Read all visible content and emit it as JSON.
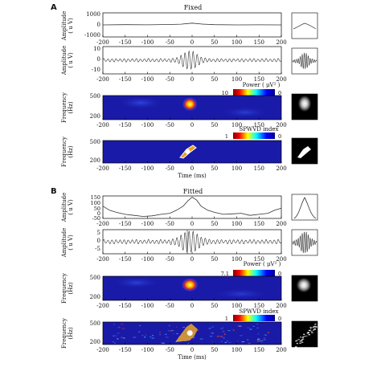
{
  "colors": {
    "trace": "#333333",
    "axis": "#000000",
    "map_background": "#1a1aa8",
    "thumb_background": "#000000"
  },
  "panels": [
    {
      "label": "A",
      "title": "Fixed",
      "traces": [
        {
          "type": "line",
          "ylabel_main": "Amplitude",
          "ylabel_unit": "( u V)",
          "yticks": [
            "1000",
            "0",
            "-1000"
          ],
          "ylim": [
            -1000,
            1000
          ],
          "x": [
            -200,
            -150,
            -100,
            -50,
            -25,
            0,
            25,
            50,
            100,
            150,
            200
          ],
          "y": [
            0,
            20,
            10,
            30,
            60,
            150,
            60,
            20,
            0,
            10,
            0
          ],
          "inset": "raw-trace-thumbnail"
        },
        {
          "type": "line",
          "ylabel_main": "Amplitude",
          "ylabel_unit": "( u V)",
          "yticks": [
            "10",
            "0",
            "-10"
          ],
          "ylim": [
            -15,
            15
          ],
          "envelope": {
            "center": -5,
            "width": 22,
            "base_amp": 1.8,
            "peak_amp": 10.5,
            "cycles_per_ms": 0.11
          },
          "inset": "filtered-trace-thumbnail"
        }
      ],
      "maps": [
        {
          "name": "power",
          "ylabel_main": "Frequency",
          "ylabel_unit": "(Hz)",
          "yticks": [
            "500",
            "200"
          ],
          "colorbar_label": "Power ( μV² )",
          "colorbar_max": "10",
          "colorbar_min": "0",
          "hotspot_ms": -5,
          "hotspot_hz": 440,
          "inset": "power-map-thumbnail"
        },
        {
          "name": "spwvd",
          "ylabel_main": "Frequency",
          "ylabel_unit": "(Hz)",
          "yticks": [
            "500",
            "200"
          ],
          "colorbar_label": "SPWVD index",
          "colorbar_max": "1",
          "colorbar_min": "0",
          "hotspot_ms": -10,
          "hotspot_hz": 380,
          "inset": "spwvd-map-thumbnail"
        }
      ]
    },
    {
      "label": "B",
      "title": "Fitted",
      "traces": [
        {
          "type": "line",
          "ylabel_main": "Amplitude",
          "ylabel_unit": "( u V)",
          "yticks": [
            "150",
            "100",
            "50",
            "0",
            "-50"
          ],
          "ylim": [
            -60,
            160
          ],
          "x": [
            -200,
            -185,
            -170,
            -150,
            -130,
            -110,
            -90,
            -70,
            -50,
            -35,
            -20,
            -10,
            0,
            10,
            20,
            35,
            50,
            70,
            90,
            110,
            130,
            150,
            170,
            185,
            200
          ],
          "y": [
            60,
            20,
            0,
            -20,
            -30,
            -40,
            -35,
            -20,
            -10,
            20,
            60,
            110,
            148,
            120,
            60,
            20,
            0,
            -20,
            -15,
            -10,
            -30,
            -20,
            -10,
            20,
            40
          ],
          "inset": "raw-trace-thumbnail"
        },
        {
          "type": "line",
          "ylabel_main": "Amplitude",
          "ylabel_unit": "( u V)",
          "yticks": [
            "5",
            "0",
            "-5"
          ],
          "ylim": [
            -8,
            8
          ],
          "envelope": {
            "center": -5,
            "width": 25,
            "base_amp": 1.4,
            "peak_amp": 7.5,
            "cycles_per_ms": 0.11
          },
          "inset": "filtered-trace-thumbnail"
        }
      ],
      "maps": [
        {
          "name": "power",
          "ylabel_main": "Frequency",
          "ylabel_unit": "(Hz)",
          "yticks": [
            "500",
            "200"
          ],
          "colorbar_label": "Power ( μV² )",
          "colorbar_max": "7.1",
          "colorbar_min": "0",
          "hotspot_ms": -5,
          "hotspot_hz": 440,
          "inset": "power-map-thumbnail"
        },
        {
          "name": "spwvd",
          "ylabel_main": "Frequency",
          "ylabel_unit": "(Hz)",
          "yticks": [
            "500",
            "200"
          ],
          "colorbar_label": "SPWVD index",
          "colorbar_max": "1",
          "colorbar_min": "0",
          "hotspot_ms": -5,
          "hotspot_hz": 380,
          "inset": "spwvd-map-thumbnail"
        }
      ]
    }
  ],
  "xaxis": {
    "ticks": [
      -200,
      -150,
      -100,
      -50,
      0,
      50,
      100,
      150,
      200
    ],
    "xlim": [
      -200,
      200
    ],
    "label": "Time (ms)"
  },
  "chart_data": [
    {
      "type": "line",
      "title": "Fixed",
      "xlabel": "Time (ms)",
      "ylabel": "Amplitude ( u V)",
      "x": [
        -200,
        -150,
        -100,
        -50,
        -25,
        0,
        25,
        50,
        100,
        150,
        200
      ],
      "y": [
        0,
        20,
        10,
        30,
        60,
        150,
        60,
        20,
        0,
        10,
        0
      ],
      "xlim": [
        -200,
        200
      ],
      "ylim": [
        -1000,
        1000
      ]
    },
    {
      "type": "line",
      "title": "Fitted",
      "xlabel": "Time (ms)",
      "ylabel": "Amplitude ( u V)",
      "x": [
        -200,
        -185,
        -170,
        -150,
        -130,
        -110,
        -90,
        -70,
        -50,
        -35,
        -20,
        -10,
        0,
        10,
        20,
        35,
        50,
        70,
        90,
        110,
        130,
        150,
        170,
        185,
        200
      ],
      "y": [
        60,
        20,
        0,
        -20,
        -30,
        -40,
        -35,
        -20,
        -10,
        20,
        60,
        110,
        148,
        120,
        60,
        20,
        0,
        -20,
        -15,
        -10,
        -30,
        -20,
        -10,
        20,
        40
      ],
      "xlim": [
        -200,
        200
      ],
      "ylim": [
        -60,
        160
      ]
    },
    {
      "type": "heatmap",
      "title": "Power ( μV² )",
      "xlabel": "Time (ms)",
      "ylabel": "Frequency (Hz)",
      "xlim": [
        -200,
        200
      ],
      "colorbar_range": [
        0,
        10
      ]
    },
    {
      "type": "heatmap",
      "title": "SPWVD index",
      "xlabel": "Time (ms)",
      "ylabel": "Frequency (Hz)",
      "xlim": [
        -200,
        200
      ],
      "colorbar_range": [
        0,
        1
      ]
    }
  ]
}
